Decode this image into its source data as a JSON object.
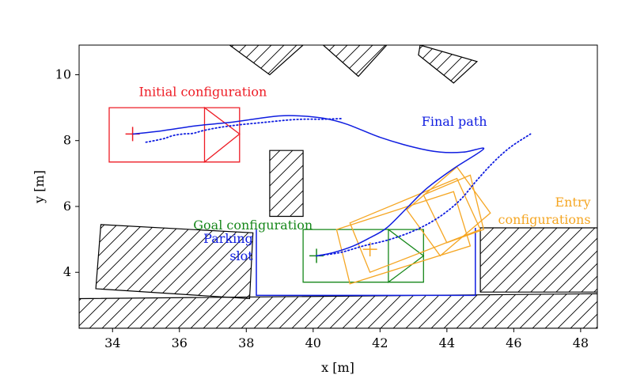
{
  "chart_data": {
    "type": "line",
    "title": "",
    "xlabel": "x [m]",
    "ylabel": "y [m]",
    "xlim": [
      33.0,
      48.5
    ],
    "ylim": [
      2.3,
      10.9
    ],
    "xticks": [
      34,
      36,
      38,
      40,
      42,
      44,
      46,
      48
    ],
    "yticks": [
      4,
      6,
      8,
      10
    ],
    "grid": false,
    "legend": "none",
    "colors": {
      "initial": "#ee1c25",
      "goal": "#16871a",
      "path": "#0f1de0",
      "entry": "#f5a623",
      "obstacle": "#000000"
    },
    "annotations": [
      {
        "key": "initial",
        "lines": [
          "Initial configuration"
        ],
        "x": 36.7,
        "y": 9.35,
        "anchor": "middle",
        "color": "#ee1c25"
      },
      {
        "key": "final_path",
        "lines": [
          "Final path"
        ],
        "x": 45.2,
        "y": 8.45,
        "anchor": "end",
        "color": "#0f1de0"
      },
      {
        "key": "goal",
        "lines": [
          "Goal configuration"
        ],
        "x": 38.2,
        "y": 5.3,
        "anchor": "middle",
        "color": "#16871a"
      },
      {
        "key": "parking",
        "lines": [
          "Parking",
          "slot"
        ],
        "x": 38.2,
        "y": 4.9,
        "anchor": "end",
        "color": "#0f1de0"
      },
      {
        "key": "entry",
        "lines": [
          "Entry",
          "configurations"
        ],
        "x": 48.3,
        "y": 6.0,
        "anchor": "end",
        "color": "#f5a623"
      }
    ],
    "obstacles": [
      [
        [
          37.5,
          10.9
        ],
        [
          38.7,
          10.0
        ],
        [
          39.7,
          10.9
        ]
      ],
      [
        [
          40.3,
          10.9
        ],
        [
          41.35,
          9.95
        ],
        [
          42.2,
          10.9
        ]
      ],
      [
        [
          43.2,
          10.9
        ],
        [
          44.9,
          10.4
        ],
        [
          44.2,
          9.75
        ],
        [
          43.15,
          10.6
        ]
      ],
      [
        [
          38.7,
          7.7
        ],
        [
          39.7,
          7.7
        ],
        [
          39.7,
          5.7
        ],
        [
          38.7,
          5.7
        ]
      ],
      [
        [
          33.65,
          5.45
        ],
        [
          38.2,
          5.2
        ],
        [
          38.1,
          3.2
        ],
        [
          33.5,
          3.5
        ]
      ],
      [
        [
          33.0,
          3.2
        ],
        [
          48.5,
          3.35
        ],
        [
          48.5,
          2.3
        ],
        [
          33.0,
          2.3
        ]
      ],
      [
        [
          45.0,
          5.35
        ],
        [
          48.5,
          5.35
        ],
        [
          48.5,
          3.4
        ],
        [
          45.0,
          3.4
        ]
      ]
    ],
    "parking_slot": [
      [
        38.3,
        5.3
      ],
      [
        38.3,
        3.3
      ],
      [
        44.85,
        3.3
      ],
      [
        44.85,
        5.35
      ]
    ],
    "initial_configuration": {
      "marker": [
        34.6,
        8.2
      ],
      "body": [
        [
          33.9,
          9.0
        ],
        [
          37.8,
          9.0
        ],
        [
          37.8,
          7.35
        ],
        [
          33.9,
          7.35
        ]
      ],
      "front": [
        [
          36.75,
          9.0
        ],
        [
          36.75,
          7.35
        ],
        [
          37.8,
          8.2
        ]
      ]
    },
    "goal_configuration": {
      "marker": [
        40.1,
        4.5
      ],
      "body": [
        [
          39.7,
          5.3
        ],
        [
          43.3,
          5.3
        ],
        [
          43.3,
          3.7
        ],
        [
          39.7,
          3.7
        ]
      ],
      "front": [
        [
          42.25,
          5.3
        ],
        [
          42.25,
          3.7
        ],
        [
          43.3,
          4.5
        ]
      ]
    },
    "entry_configurations": {
      "marker": [
        41.7,
        4.7
      ],
      "bodies": [
        [
          [
            40.7,
            5.3
          ],
          [
            44.2,
            6.45
          ],
          [
            44.7,
            4.8
          ],
          [
            41.1,
            3.65
          ]
        ],
        [
          [
            41.1,
            5.5
          ],
          [
            44.3,
            6.85
          ],
          [
            45.0,
            5.3
          ],
          [
            41.7,
            4.0
          ]
        ],
        [
          [
            42.8,
            5.9
          ],
          [
            44.3,
            7.2
          ],
          [
            45.3,
            5.8
          ],
          [
            43.8,
            4.5
          ]
        ],
        [
          [
            43.3,
            6.35
          ],
          [
            44.7,
            6.95
          ],
          [
            45.1,
            5.3
          ],
          [
            44.0,
            4.9
          ]
        ]
      ]
    },
    "series": [
      {
        "key": "final_path",
        "style": "solid",
        "color": "#0f1de0",
        "x": [
          34.6,
          35.5,
          36.5,
          37.5,
          38.2,
          39.0,
          39.6,
          40.3,
          41.0,
          42.0,
          43.0,
          43.8,
          44.5,
          45.1,
          44.2,
          43.4,
          42.8,
          42.2,
          41.7,
          41.2,
          40.6,
          40.1
        ],
        "y": [
          8.2,
          8.3,
          8.45,
          8.55,
          8.65,
          8.75,
          8.75,
          8.68,
          8.5,
          8.1,
          7.8,
          7.65,
          7.65,
          7.75,
          7.15,
          6.55,
          5.95,
          5.35,
          5.05,
          4.8,
          4.6,
          4.5
        ]
      },
      {
        "key": "dotted_initial",
        "style": "dotted",
        "color": "#0f1de0",
        "x": [
          35.0,
          35.5,
          35.8,
          36.1,
          36.4,
          36.7,
          37.2,
          37.8,
          38.5,
          39.2,
          39.7,
          40.3,
          40.9
        ],
        "y": [
          7.95,
          8.05,
          8.15,
          8.2,
          8.22,
          8.3,
          8.4,
          8.48,
          8.55,
          8.62,
          8.65,
          8.65,
          8.67
        ]
      },
      {
        "key": "dotted_entry",
        "style": "dotted",
        "color": "#0f1de0",
        "x": [
          40.1,
          40.8,
          41.5,
          42.3,
          43.1,
          43.8,
          44.4,
          44.9,
          45.4,
          45.9,
          46.5
        ],
        "y": [
          4.5,
          4.6,
          4.8,
          5.0,
          5.3,
          5.7,
          6.2,
          6.8,
          7.35,
          7.8,
          8.2
        ]
      }
    ]
  }
}
